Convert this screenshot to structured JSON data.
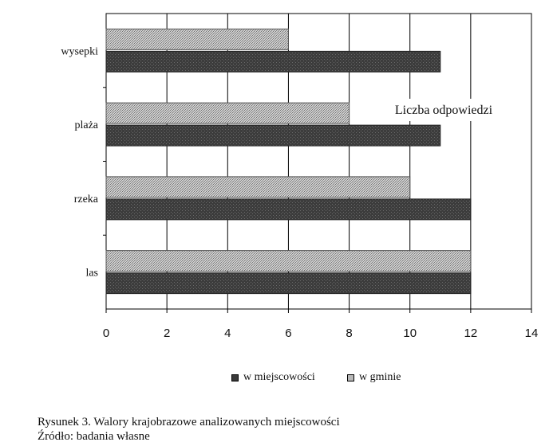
{
  "chart_data": {
    "type": "bar",
    "orientation": "horizontal",
    "categories": [
      "wysepki",
      "plaża",
      "rzeka",
      "las"
    ],
    "series": [
      {
        "name": "w miejscowości",
        "values": [
          11,
          11,
          12,
          12
        ],
        "color": "#3a3a3a"
      },
      {
        "name": "w gminie",
        "values": [
          6,
          8,
          10,
          12
        ],
        "color": "#b8b8b8"
      }
    ],
    "annotation": "Liczba odpowiedzi",
    "xlim": [
      0,
      14
    ],
    "xticks": [
      0,
      2,
      4,
      6,
      8,
      10,
      12,
      14
    ],
    "grid": true,
    "legend_position": "bottom"
  },
  "caption": {
    "line1": "Rysunek 3. Walory krajobrazowe analizowanych miejscowości",
    "line2": "Źródło: badania własne"
  }
}
